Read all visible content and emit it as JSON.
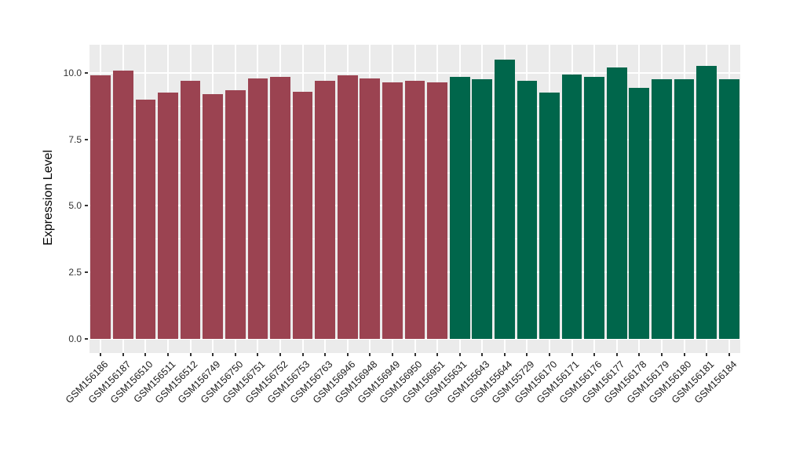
{
  "chart_data": {
    "type": "bar",
    "title": "",
    "xlabel": "",
    "ylabel": "Expression Level",
    "categories": [
      "GSM156186",
      "GSM156187",
      "GSM156510",
      "GSM156511",
      "GSM156512",
      "GSM156749",
      "GSM156750",
      "GSM156751",
      "GSM156752",
      "GSM156753",
      "GSM156763",
      "GSM156946",
      "GSM156948",
      "GSM156949",
      "GSM156950",
      "GSM156951",
      "GSM155631",
      "GSM155643",
      "GSM155644",
      "GSM155729",
      "GSM156170",
      "GSM156171",
      "GSM156176",
      "GSM156177",
      "GSM156178",
      "GSM156179",
      "GSM156180",
      "GSM156181",
      "GSM156184"
    ],
    "values": [
      9.9,
      10.1,
      9.0,
      9.25,
      9.7,
      9.2,
      9.35,
      9.8,
      9.85,
      9.3,
      9.7,
      9.9,
      9.8,
      9.65,
      9.7,
      9.65,
      9.85,
      9.75,
      10.5,
      9.7,
      9.25,
      9.95,
      9.85,
      10.2,
      9.45,
      9.75,
      9.75,
      10.25,
      9.75
    ],
    "bar_group": [
      0,
      0,
      0,
      0,
      0,
      0,
      0,
      0,
      0,
      0,
      0,
      0,
      0,
      0,
      0,
      0,
      1,
      1,
      1,
      1,
      1,
      1,
      1,
      1,
      1,
      1,
      1,
      1,
      1
    ],
    "palette": [
      "#9B4351",
      "#00664B"
    ],
    "bar_width_fraction": 0.9,
    "ytick_labels": [
      "0.0",
      "2.5",
      "5.0",
      "7.5",
      "10.0"
    ],
    "ytick_values": [
      0,
      2.5,
      5,
      7.5,
      10
    ],
    "yminor_values": [
      1.25,
      3.75,
      6.25,
      8.75
    ],
    "ylim": [
      -0.53,
      11.06
    ],
    "grid": "on",
    "legend": "none",
    "colors": {
      "figure_background": "#FFFFFF",
      "panel_background": "#EBEBEB",
      "gridline": "#FFFFFF",
      "tick_text": "#333333",
      "axis_title_text": "#000000"
    }
  }
}
